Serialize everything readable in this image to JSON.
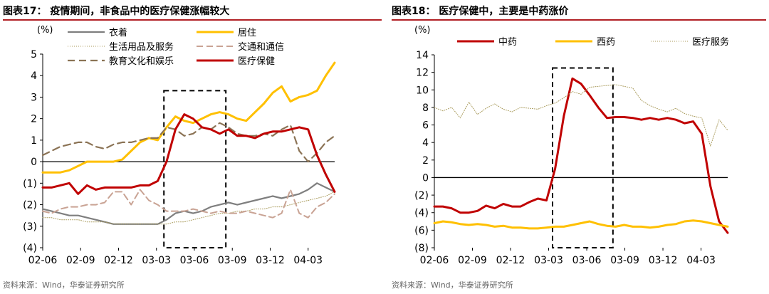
{
  "charts": [
    {
      "figure_title": "图表17：  疫情期间，非食品中的医疗保健涨幅较大",
      "source": "资料来源：Wind，华泰证券研究所"
    },
    {
      "figure_title": "图表18：  医疗保健中，主要是中药涨价",
      "source": "资料来源：Wind，华泰证券研究所"
    }
  ],
  "colors": {
    "title_rule": "#b11f24",
    "box": "#000000"
  },
  "chart_data": [
    {
      "type": "line",
      "unit_label": "(%)",
      "x_ticks": [
        "02-06",
        "02-09",
        "02-12",
        "03-03",
        "03-06",
        "03-09",
        "03-12",
        "04-03"
      ],
      "y_ticks": [
        "5",
        "4",
        "3",
        "2",
        "1",
        "0",
        "(1)",
        "(2)",
        "(3)",
        "(4)"
      ],
      "ylim": [
        -4,
        5
      ],
      "highlight_box": {
        "x_from": 13.7,
        "x_to": 20.7,
        "y_from": -4,
        "y_to": 3.3
      },
      "legend_position": "top",
      "series": [
        {
          "name": "衣着",
          "color": "#7f7f7f",
          "width": 2.2,
          "dash": "",
          "values": [
            -2.2,
            -2.3,
            -2.4,
            -2.5,
            -2.5,
            -2.6,
            -2.7,
            -2.8,
            -2.9,
            -2.9,
            -2.9,
            -2.9,
            -2.9,
            -2.9,
            -2.7,
            -2.4,
            -2.3,
            -2.4,
            -2.3,
            -2.1,
            -2.0,
            -1.9,
            -2.0,
            -1.9,
            -1.8,
            -1.7,
            -1.6,
            -1.7,
            -1.6,
            -1.5,
            -1.3,
            -1.0,
            -1.2,
            -1.4
          ]
        },
        {
          "name": "居住",
          "color": "#ffc000",
          "width": 3,
          "dash": "",
          "values": [
            -0.5,
            -0.5,
            -0.5,
            -0.4,
            -0.2,
            0.0,
            0.0,
            0.0,
            0.0,
            0.1,
            0.5,
            0.9,
            1.1,
            1.0,
            1.6,
            2.1,
            1.9,
            1.8,
            2.0,
            2.2,
            2.3,
            2.2,
            2.0,
            1.9,
            2.3,
            2.7,
            3.2,
            3.5,
            2.8,
            3.0,
            3.1,
            3.3,
            4.0,
            4.6
          ]
        },
        {
          "name": "生活用品及服务",
          "color": "#a89a5a",
          "width": 1,
          "dash": "1 2",
          "values": [
            -2.6,
            -2.6,
            -2.7,
            -2.7,
            -2.7,
            -2.8,
            -2.8,
            -2.8,
            -2.9,
            -2.9,
            -2.9,
            -2.9,
            -2.9,
            -2.9,
            -2.9,
            -2.8,
            -2.8,
            -2.7,
            -2.6,
            -2.5,
            -2.4,
            -2.4,
            -2.3,
            -2.3,
            -2.2,
            -2.2,
            -2.1,
            -2.1,
            -2.0,
            -1.9,
            -1.8,
            -1.7,
            -1.6,
            -1.4
          ]
        },
        {
          "name": "交通和通信",
          "color": "#c9a394",
          "width": 2,
          "dash": "9 5",
          "values": [
            -2.3,
            -2.4,
            -2.2,
            -2.1,
            -2.1,
            -2.0,
            -2.0,
            -1.9,
            -1.4,
            -1.4,
            -2.0,
            -1.3,
            -1.8,
            -2.0,
            -2.3,
            -2.3,
            -2.3,
            -2.2,
            -2.3,
            -2.4,
            -2.3,
            -2.4,
            -2.4,
            -2.3,
            -2.4,
            -2.5,
            -2.6,
            -2.4,
            -1.3,
            -2.4,
            -2.6,
            -2.1,
            -1.9,
            -1.5
          ]
        },
        {
          "name": "教育文化和娱乐",
          "color": "#8b7355",
          "width": 2.2,
          "dash": "10 6",
          "values": [
            0.3,
            0.5,
            0.7,
            0.8,
            0.9,
            0.9,
            0.7,
            0.6,
            0.8,
            0.9,
            0.9,
            1.0,
            1.1,
            1.1,
            1.6,
            1.5,
            1.2,
            1.3,
            1.6,
            1.5,
            1.8,
            1.6,
            1.3,
            1.2,
            1.2,
            1.3,
            1.2,
            1.5,
            1.7,
            0.5,
            0.0,
            0.4,
            0.9,
            1.2
          ]
        },
        {
          "name": "医疗保健",
          "color": "#c00000",
          "width": 3,
          "dash": "",
          "values": [
            -1.2,
            -1.2,
            -1.1,
            -1.0,
            -1.5,
            -1.1,
            -1.3,
            -1.2,
            -1.2,
            -1.2,
            -1.2,
            -1.1,
            -1.1,
            -0.9,
            0.0,
            1.5,
            2.2,
            2.0,
            1.6,
            1.5,
            1.3,
            1.5,
            1.2,
            1.2,
            1.1,
            1.3,
            1.4,
            1.4,
            1.5,
            1.6,
            1.5,
            0.3,
            -0.6,
            -1.4
          ]
        }
      ]
    },
    {
      "type": "line",
      "unit_label": "(%)",
      "x_ticks": [
        "02-06",
        "02-09",
        "02-12",
        "03-03",
        "03-06",
        "03-09",
        "03-12",
        "04-03"
      ],
      "y_ticks": [
        "14",
        "12",
        "10",
        "8",
        "6",
        "4",
        "2",
        "0",
        "(2)",
        "(4)",
        "(6)",
        "(8)"
      ],
      "ylim": [
        -8,
        14
      ],
      "highlight_box": {
        "x_from": 13.7,
        "x_to": 20.7,
        "y_from": -8,
        "y_to": 12.5
      },
      "legend_position": "top",
      "series": [
        {
          "name": "中药",
          "color": "#c00000",
          "width": 3,
          "dash": "",
          "values": [
            -3.3,
            -3.3,
            -3.5,
            -4.0,
            -4.0,
            -3.8,
            -3.2,
            -3.5,
            -3.0,
            -3.3,
            -3.3,
            -2.8,
            -2.4,
            -2.6,
            1.0,
            7.0,
            11.3,
            10.7,
            9.4,
            8.0,
            6.8,
            6.9,
            6.9,
            6.8,
            6.6,
            6.8,
            6.6,
            6.8,
            6.6,
            6.2,
            6.4,
            5.0,
            -1.0,
            -5.0,
            -6.3
          ]
        },
        {
          "name": "西药",
          "color": "#ffc000",
          "width": 3,
          "dash": "",
          "values": [
            -5.2,
            -5.0,
            -5.1,
            -5.3,
            -5.4,
            -5.3,
            -5.4,
            -5.6,
            -5.5,
            -5.7,
            -5.7,
            -5.8,
            -5.8,
            -5.7,
            -5.6,
            -5.6,
            -5.4,
            -5.2,
            -5.0,
            -5.3,
            -5.5,
            -5.6,
            -5.4,
            -5.6,
            -5.6,
            -5.7,
            -5.6,
            -5.4,
            -5.3,
            -5.0,
            -4.9,
            -5.0,
            -5.2,
            -5.4,
            -5.6
          ]
        },
        {
          "name": "医疗服务",
          "color": "#a89a5a",
          "width": 1,
          "dash": "1 2",
          "values": [
            8.0,
            7.6,
            8.0,
            6.8,
            8.6,
            7.2,
            7.9,
            8.4,
            7.8,
            7.5,
            8.0,
            7.9,
            7.8,
            8.2,
            8.5,
            9.1,
            9.8,
            9.5,
            10.3,
            10.4,
            10.5,
            10.6,
            10.4,
            10.2,
            8.8,
            8.2,
            7.8,
            7.5,
            7.9,
            7.3,
            7.0,
            6.8,
            3.6,
            6.6,
            5.4
          ]
        }
      ]
    }
  ]
}
